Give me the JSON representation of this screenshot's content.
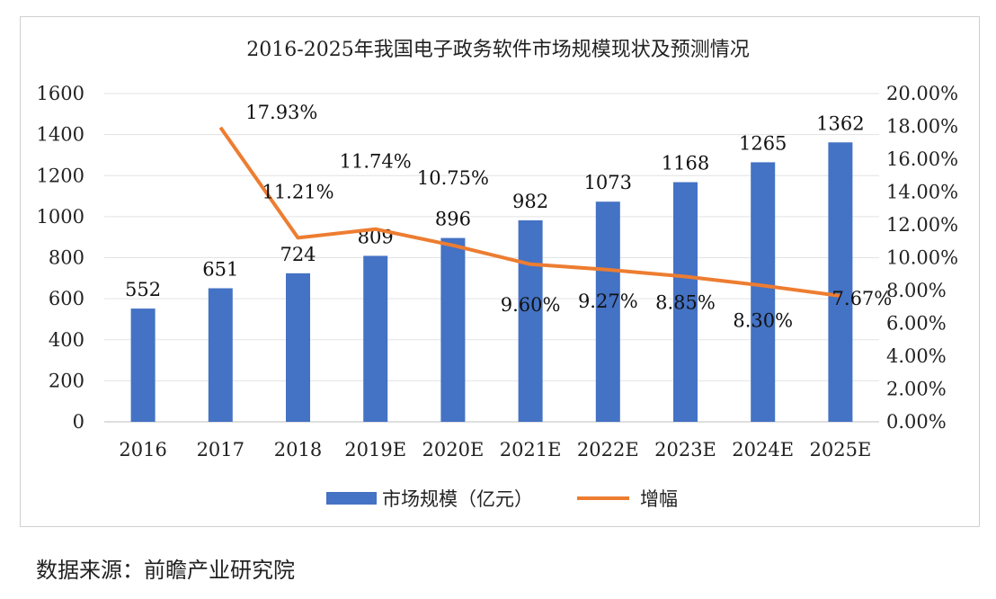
{
  "source": "数据来源：前瞻产业研究院",
  "chart_data": {
    "type": "bar",
    "title": "2016-2025年我国电子政务软件市场规模现状及预测情况",
    "categories": [
      "2016",
      "2017",
      "2018",
      "2019E",
      "2020E",
      "2021E",
      "2022E",
      "2023E",
      "2024E",
      "2025E"
    ],
    "y_left": {
      "min": 0,
      "max": 1600,
      "ticks": [
        "0",
        "200",
        "400",
        "600",
        "800",
        "1000",
        "1200",
        "1400",
        "1600"
      ]
    },
    "y_right": {
      "min": 0,
      "max": 20,
      "ticks": [
        "0.00%",
        "2.00%",
        "4.00%",
        "6.00%",
        "8.00%",
        "10.00%",
        "12.00%",
        "14.00%",
        "16.00%",
        "18.00%",
        "20.00%"
      ]
    },
    "series": [
      {
        "name": "市场规模（亿元）",
        "type": "bar",
        "axis": "left",
        "color": "#4472c4",
        "values": [
          552,
          651,
          724,
          809,
          896,
          982,
          1073,
          1168,
          1265,
          1362
        ],
        "labels": [
          "552",
          "651",
          "724",
          "809",
          "896",
          "982",
          "1073",
          "1168",
          "1265",
          "1362"
        ]
      },
      {
        "name": "增幅",
        "type": "line",
        "axis": "right",
        "color": "#ed7d31",
        "values": [
          null,
          17.93,
          11.21,
          11.74,
          10.75,
          9.6,
          9.27,
          8.85,
          8.3,
          7.67
        ],
        "labels": [
          "",
          "17.93%",
          "11.21%",
          "11.74%",
          "10.75%",
          "9.60%",
          "9.27%",
          "8.85%",
          "8.30%",
          "7.67%"
        ]
      }
    ],
    "grid": true,
    "legend": "bottom"
  }
}
